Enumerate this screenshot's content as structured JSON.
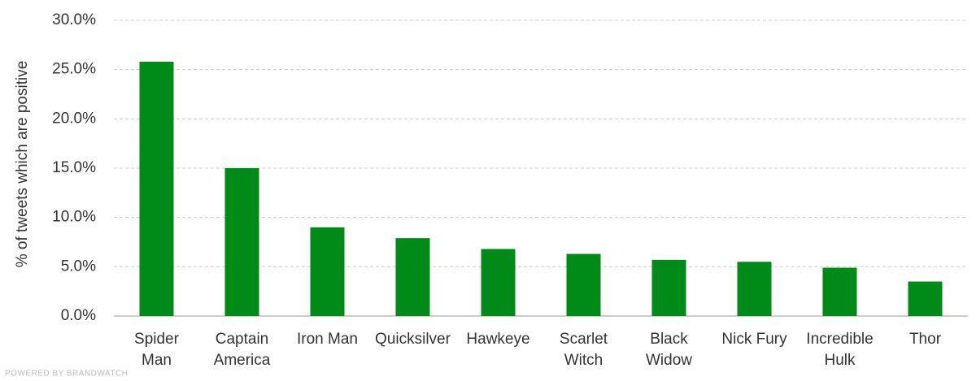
{
  "chart_data": {
    "type": "bar",
    "y_label": "% of tweets which are positive",
    "footer": "POWERED BY BRANDWATCH",
    "categories": [
      [
        "Spider",
        "Man"
      ],
      [
        "Captain",
        "America"
      ],
      [
        "Iron Man"
      ],
      [
        "Quicksilver"
      ],
      [
        "Hawkeye"
      ],
      [
        "Scarlet",
        "Witch"
      ],
      [
        "Black",
        "Widow"
      ],
      [
        "Nick Fury"
      ],
      [
        "Incredible",
        "Hulk"
      ],
      [
        "Thor"
      ]
    ],
    "values": [
      25.8,
      15.0,
      9.0,
      7.9,
      6.8,
      6.3,
      5.7,
      5.5,
      4.9,
      3.5
    ],
    "color": "#008a17",
    "ylim": [
      0,
      30
    ],
    "yticks": [
      {
        "value": 0,
        "label": "0.0%"
      },
      {
        "value": 5,
        "label": "5.0%"
      },
      {
        "value": 10,
        "label": "10.0%"
      },
      {
        "value": 15,
        "label": "15.0%"
      },
      {
        "value": 20,
        "label": "20.0%"
      },
      {
        "value": 25,
        "label": "25.0%"
      },
      {
        "value": 30,
        "label": "30.0%"
      }
    ],
    "grid": true
  }
}
